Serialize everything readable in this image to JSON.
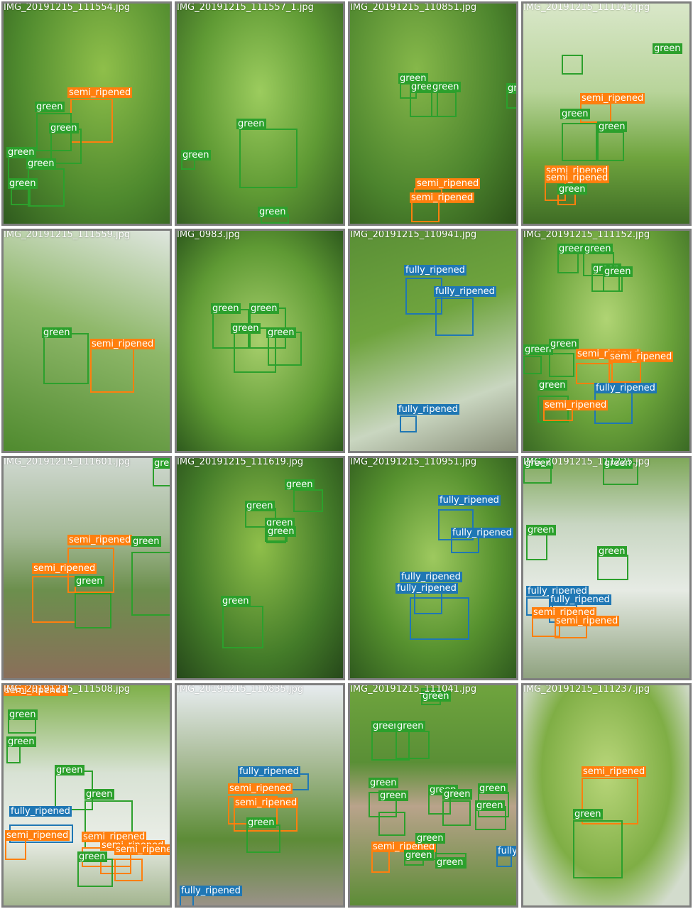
{
  "colors": {
    "green": "#2ca02c",
    "semi_ripened": "#ff7f0e",
    "fully_ripened": "#1f77b4",
    "tile_border": "#7f7f7f",
    "filename_text": "#ffffff"
  },
  "tiles": [
    {
      "filename": "IMG_20191215_111554.jpg",
      "detections": [
        {
          "label": "semi_ripened"
        },
        {
          "label": "green"
        },
        {
          "label": "green"
        },
        {
          "label": "green"
        },
        {
          "label": "green"
        },
        {
          "label": "green"
        }
      ]
    },
    {
      "filename": "IMG_20191215_111557_1.jpg",
      "detections": [
        {
          "label": "green"
        },
        {
          "label": "green"
        },
        {
          "label": "green"
        }
      ]
    },
    {
      "filename": "IMG_20191215_110851.jpg",
      "detections": [
        {
          "label": "green"
        },
        {
          "label": "green"
        },
        {
          "label": "green"
        },
        {
          "label": "green"
        },
        {
          "label": "semi_ripened"
        },
        {
          "label": "semi_ripened"
        }
      ]
    },
    {
      "filename": "IMG_20191215_111143.jpg",
      "detections": [
        {
          "label": "green"
        },
        {
          "label": "semi_ripened"
        },
        {
          "label": "green"
        },
        {
          "label": "green"
        },
        {
          "label": "semi_ripened"
        },
        {
          "label": "semi_ripened"
        },
        {
          "label": "green"
        }
      ]
    },
    {
      "filename": "IMG_20191215_111559.jpg",
      "detections": [
        {
          "label": "green"
        },
        {
          "label": "semi_ripened"
        }
      ]
    },
    {
      "filename": "IMG_0983.jpg",
      "detections": [
        {
          "label": "green"
        },
        {
          "label": "green"
        },
        {
          "label": "green"
        },
        {
          "label": "green"
        }
      ]
    },
    {
      "filename": "IMG_20191215_110941.jpg",
      "detections": [
        {
          "label": "fully_ripened"
        },
        {
          "label": "fully_ripened"
        },
        {
          "label": "fully_ripened"
        }
      ]
    },
    {
      "filename": "IMG_20191215_111152.jpg",
      "detections": [
        {
          "label": "green"
        },
        {
          "label": "green"
        },
        {
          "label": "green"
        },
        {
          "label": "green"
        },
        {
          "label": "green"
        },
        {
          "label": "green"
        },
        {
          "label": "semi_ripened"
        },
        {
          "label": "semi_ripened"
        },
        {
          "label": "green"
        },
        {
          "label": "fully_ripened"
        },
        {
          "label": "semi_ripened"
        }
      ]
    },
    {
      "filename": "IMG_20191215_111601.jpg",
      "detections": [
        {
          "label": "green"
        },
        {
          "label": "semi_ripened"
        },
        {
          "label": "green"
        },
        {
          "label": "semi_ripened"
        },
        {
          "label": "green"
        }
      ]
    },
    {
      "filename": "IMG_20191215_111619.jpg",
      "detections": [
        {
          "label": "green"
        },
        {
          "label": "green"
        },
        {
          "label": "green"
        },
        {
          "label": "green"
        },
        {
          "label": "green"
        }
      ]
    },
    {
      "filename": "IMG_20191215_110951.jpg",
      "detections": [
        {
          "label": "fully_ripened"
        },
        {
          "label": "fully_ripened"
        },
        {
          "label": "fully_ripened"
        },
        {
          "label": "fully_ripened"
        }
      ]
    },
    {
      "filename": "IMG_20191215_111225.jpg",
      "detections": [
        {
          "label": "green"
        },
        {
          "label": "green"
        },
        {
          "label": "green"
        },
        {
          "label": "green"
        },
        {
          "label": "fully_ripened"
        },
        {
          "label": "fully_ripened"
        },
        {
          "label": "semi_ripened"
        },
        {
          "label": "semi_ripened"
        },
        {
          "label": "green"
        }
      ]
    },
    {
      "filename": "IMG_20191215_111508.jpg",
      "detections": [
        {
          "label": "green"
        },
        {
          "label": "green"
        },
        {
          "label": "green"
        },
        {
          "label": "green"
        },
        {
          "label": "fully_ripened"
        },
        {
          "label": "semi_ripened"
        },
        {
          "label": "semi_ripened"
        },
        {
          "label": "semi_ripened"
        },
        {
          "label": "green"
        },
        {
          "label": "semi_ripened"
        },
        {
          "label": "semi_ripened"
        }
      ]
    },
    {
      "filename": "IMG_20191215_110835.jpg",
      "detections": [
        {
          "label": "fully_ripened"
        },
        {
          "label": "semi_ripened"
        },
        {
          "label": "semi_ripened"
        },
        {
          "label": "green"
        },
        {
          "label": "fully_ripened"
        }
      ]
    },
    {
      "filename": "IMG_20191215_111041.jpg",
      "detections": [
        {
          "label": "green"
        },
        {
          "label": "green"
        },
        {
          "label": "green"
        },
        {
          "label": "green"
        },
        {
          "label": "green"
        },
        {
          "label": "green"
        },
        {
          "label": "green"
        },
        {
          "label": "green"
        },
        {
          "label": "green"
        },
        {
          "label": "semi_ripened"
        },
        {
          "label": "green"
        },
        {
          "label": "green"
        },
        {
          "label": "green"
        },
        {
          "label": "fully_ripened"
        }
      ]
    },
    {
      "filename": "IMG_20191215_111237.jpg",
      "detections": [
        {
          "label": "semi_ripened"
        },
        {
          "label": "green"
        }
      ]
    }
  ]
}
